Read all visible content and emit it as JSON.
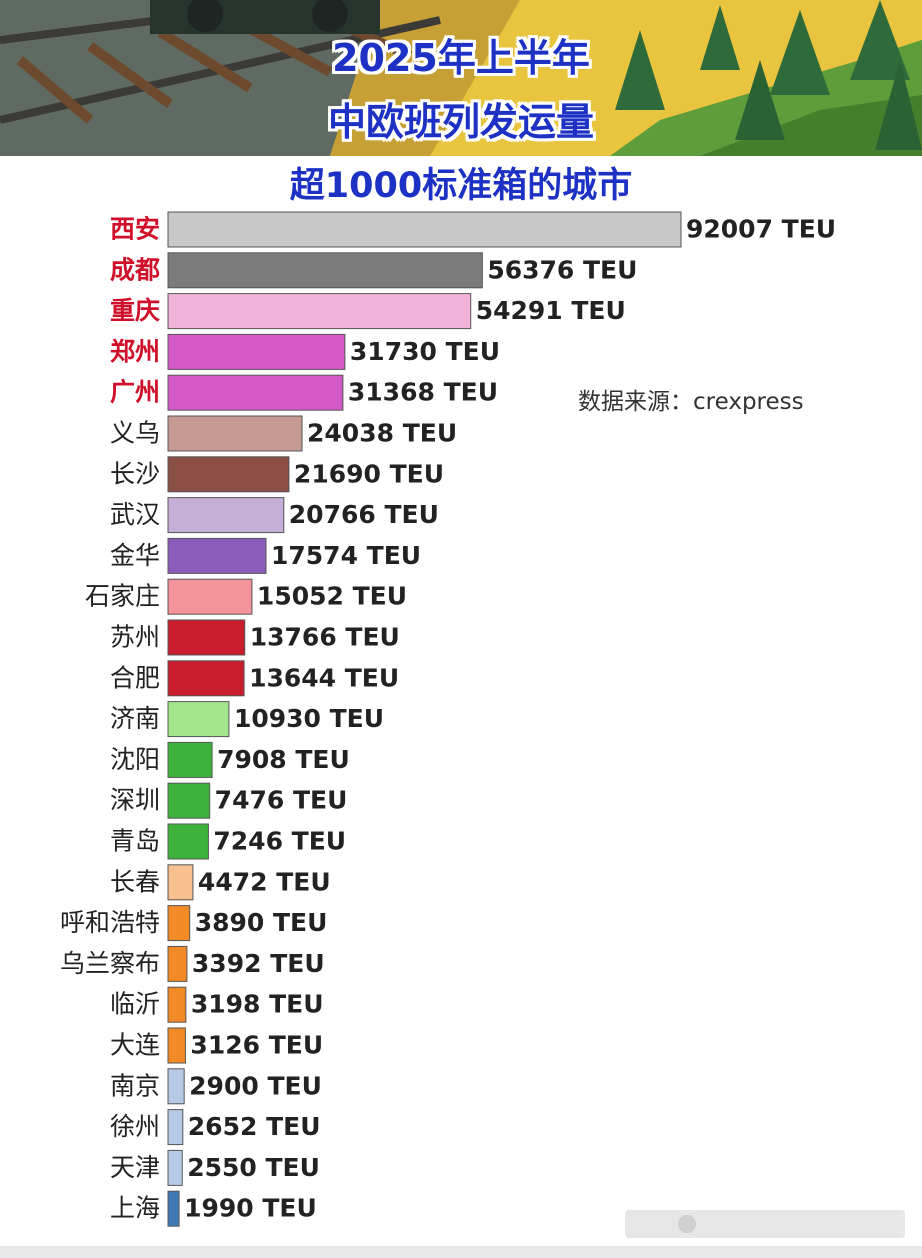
{
  "title_line_1": "2025年上半年",
  "title_line_2": "中欧班列发运量",
  "source_note": "数据来源：crexpress",
  "colors": {
    "title": "#1d32c4",
    "highlight_label": "#d0102a",
    "normal_label": "#222222"
  },
  "chart_data": {
    "type": "bar",
    "orientation": "horizontal",
    "title": "超1000标准箱的城市",
    "xlabel": "",
    "ylabel": "",
    "unit": "TEU",
    "value_suffix": " TEU",
    "grid": false,
    "categories": [
      "西安",
      "成都",
      "重庆",
      "郑州",
      "广州",
      "义乌",
      "长沙",
      "武汉",
      "金华",
      "石家庄",
      "苏州",
      "合肥",
      "济南",
      "沈阳",
      "深圳",
      "青岛",
      "长春",
      "呼和浩特",
      "乌兰察布",
      "临沂",
      "大连",
      "南京",
      "徐州",
      "天津",
      "上海"
    ],
    "values": [
      92007,
      56376,
      54291,
      31730,
      31368,
      24038,
      21690,
      20766,
      17574,
      15052,
      13766,
      13644,
      10930,
      7908,
      7476,
      7246,
      4472,
      3890,
      3392,
      3198,
      3126,
      2900,
      2652,
      2550,
      1990
    ],
    "bar_colors": [
      "#c8c8c8",
      "#7b7b7b",
      "#f1b3d9",
      "#d35ac7",
      "#d35ac7",
      "#c49a93",
      "#8b4f45",
      "#c6afd6",
      "#8c5cbd",
      "#f3949b",
      "#c91d2e",
      "#c91d2e",
      "#a2e78d",
      "#3eb33c",
      "#3eb33c",
      "#3eb33c",
      "#f7c08e",
      "#f28a25",
      "#f28a25",
      "#f28a25",
      "#f28a25",
      "#b6c9e6",
      "#b6c9e6",
      "#b6c9e6",
      "#3f7ab8"
    ],
    "highlighted_categories": [
      "西安",
      "成都",
      "重庆",
      "郑州",
      "广州"
    ]
  }
}
